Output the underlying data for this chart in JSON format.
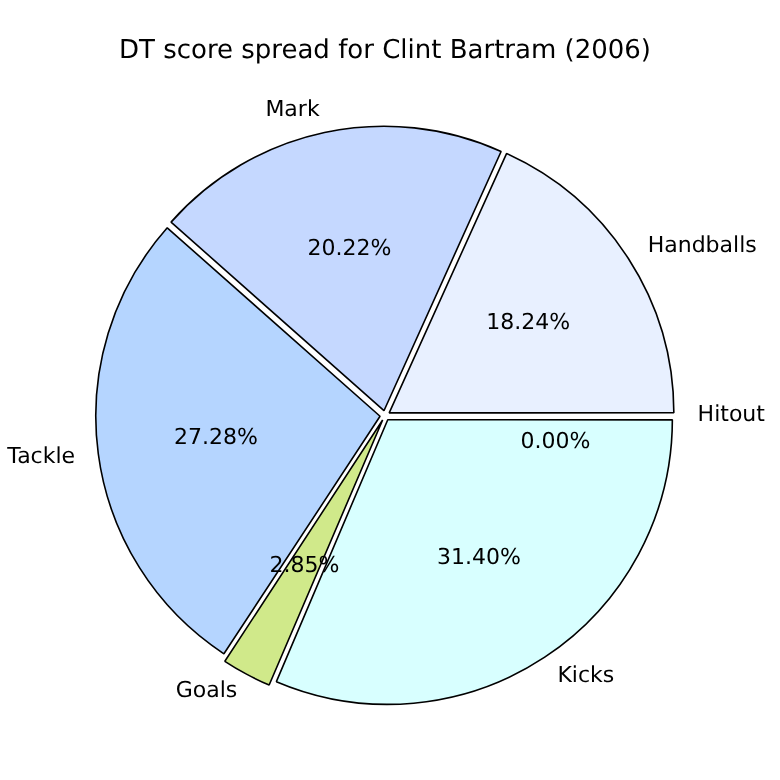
{
  "chart_data": {
    "type": "pie",
    "title": "DT score spread for Clint Bartram (2006)",
    "categories": [
      "Hitout",
      "Kicks",
      "Goals",
      "Tackle",
      "Mark",
      "Handballs"
    ],
    "values": [
      0.0,
      31.4,
      2.85,
      27.28,
      20.22,
      18.24
    ],
    "colors": [
      "#ffffff",
      "#d8ffff",
      "#d0e98a",
      "#b5d5ff",
      "#c5d8ff",
      "#e8f0ff"
    ],
    "value_labels": [
      "0.00%",
      "31.40%",
      "2.85%",
      "27.28%",
      "20.22%",
      "18.24%"
    ],
    "legend": false
  }
}
